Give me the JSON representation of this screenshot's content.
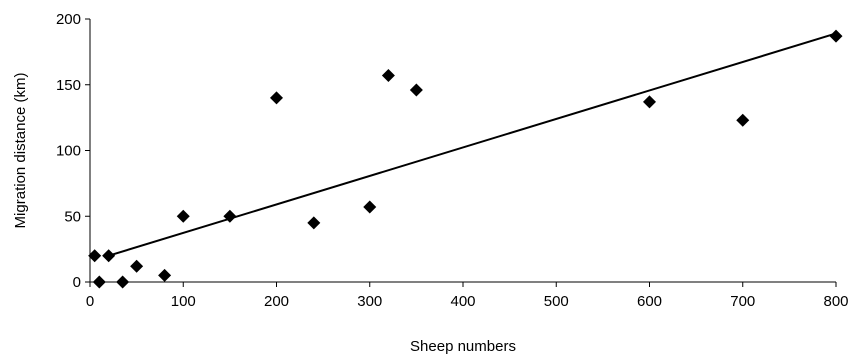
{
  "chart_data": {
    "type": "scatter",
    "title": "",
    "xlabel": "Sheep numbers",
    "ylabel": "Migration distance (km)",
    "xlim": [
      0,
      800
    ],
    "ylim": [
      0,
      200
    ],
    "x_ticks": [
      "0",
      "100",
      "200",
      "300",
      "400",
      "500",
      "600",
      "700",
      "800"
    ],
    "y_ticks": [
      "0",
      "50",
      "100",
      "150",
      "200"
    ],
    "grid": false,
    "legend": "none",
    "marker": "diamond",
    "marker_color": "#000000",
    "points": [
      {
        "x": 5,
        "y": 20
      },
      {
        "x": 10,
        "y": 0
      },
      {
        "x": 20,
        "y": 20
      },
      {
        "x": 35,
        "y": 0
      },
      {
        "x": 50,
        "y": 12
      },
      {
        "x": 80,
        "y": 5
      },
      {
        "x": 100,
        "y": 50
      },
      {
        "x": 150,
        "y": 50
      },
      {
        "x": 200,
        "y": 140
      },
      {
        "x": 240,
        "y": 45
      },
      {
        "x": 300,
        "y": 57
      },
      {
        "x": 320,
        "y": 157
      },
      {
        "x": 350,
        "y": 146
      },
      {
        "x": 600,
        "y": 137
      },
      {
        "x": 700,
        "y": 123
      },
      {
        "x": 800,
        "y": 187
      }
    ],
    "trendline": {
      "type": "linear",
      "from": {
        "x": 20,
        "y": 20
      },
      "to": {
        "x": 800,
        "y": 189
      }
    }
  }
}
